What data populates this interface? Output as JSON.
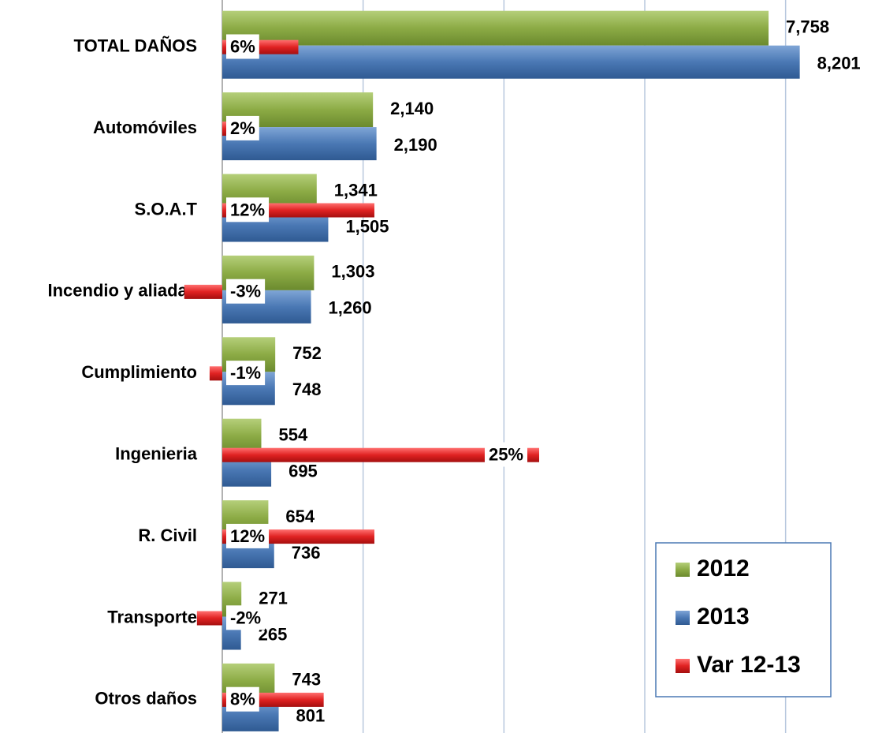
{
  "chart_data": {
    "type": "bar",
    "orientation": "horizontal",
    "categories": [
      "TOTAL DAÑOS",
      "Automóviles",
      "S.O.A.T",
      "Incendio y aliadas",
      "Cumplimiento",
      "Ingenieria",
      "R. Civil",
      "Transporte",
      "Otros daños"
    ],
    "series": [
      {
        "name": "2012",
        "color": "#8cab45",
        "values": [
          7758,
          2140,
          1341,
          1303,
          752,
          554,
          654,
          271,
          743
        ],
        "value_labels": [
          "7,758",
          "2,140",
          "1,341",
          "1,303",
          "752",
          "554",
          "654",
          "271",
          "743"
        ]
      },
      {
        "name": "2013",
        "color": "#4a78b4",
        "values": [
          8201,
          2190,
          1505,
          1260,
          748,
          695,
          736,
          265,
          801
        ],
        "value_labels": [
          "8,201",
          "2,190",
          "1,505",
          "1,260",
          "748",
          "695",
          "736",
          "265",
          "801"
        ]
      },
      {
        "name": "Var 12-13",
        "color": "#e02222",
        "axis": "x2",
        "values": [
          6,
          2,
          12,
          -3,
          -1,
          25,
          12,
          -2,
          8
        ],
        "value_labels": [
          "6%",
          "2%",
          "12%",
          "-3%",
          "-1%",
          "25%",
          "12%",
          "-2%",
          "8%"
        ]
      }
    ],
    "xlim": [
      0,
      9000
    ],
    "xticks": [
      0,
      2000,
      4000,
      6000,
      8000
    ],
    "x2lim": [
      0,
      50
    ],
    "grid": true,
    "legend": "lower right"
  }
}
